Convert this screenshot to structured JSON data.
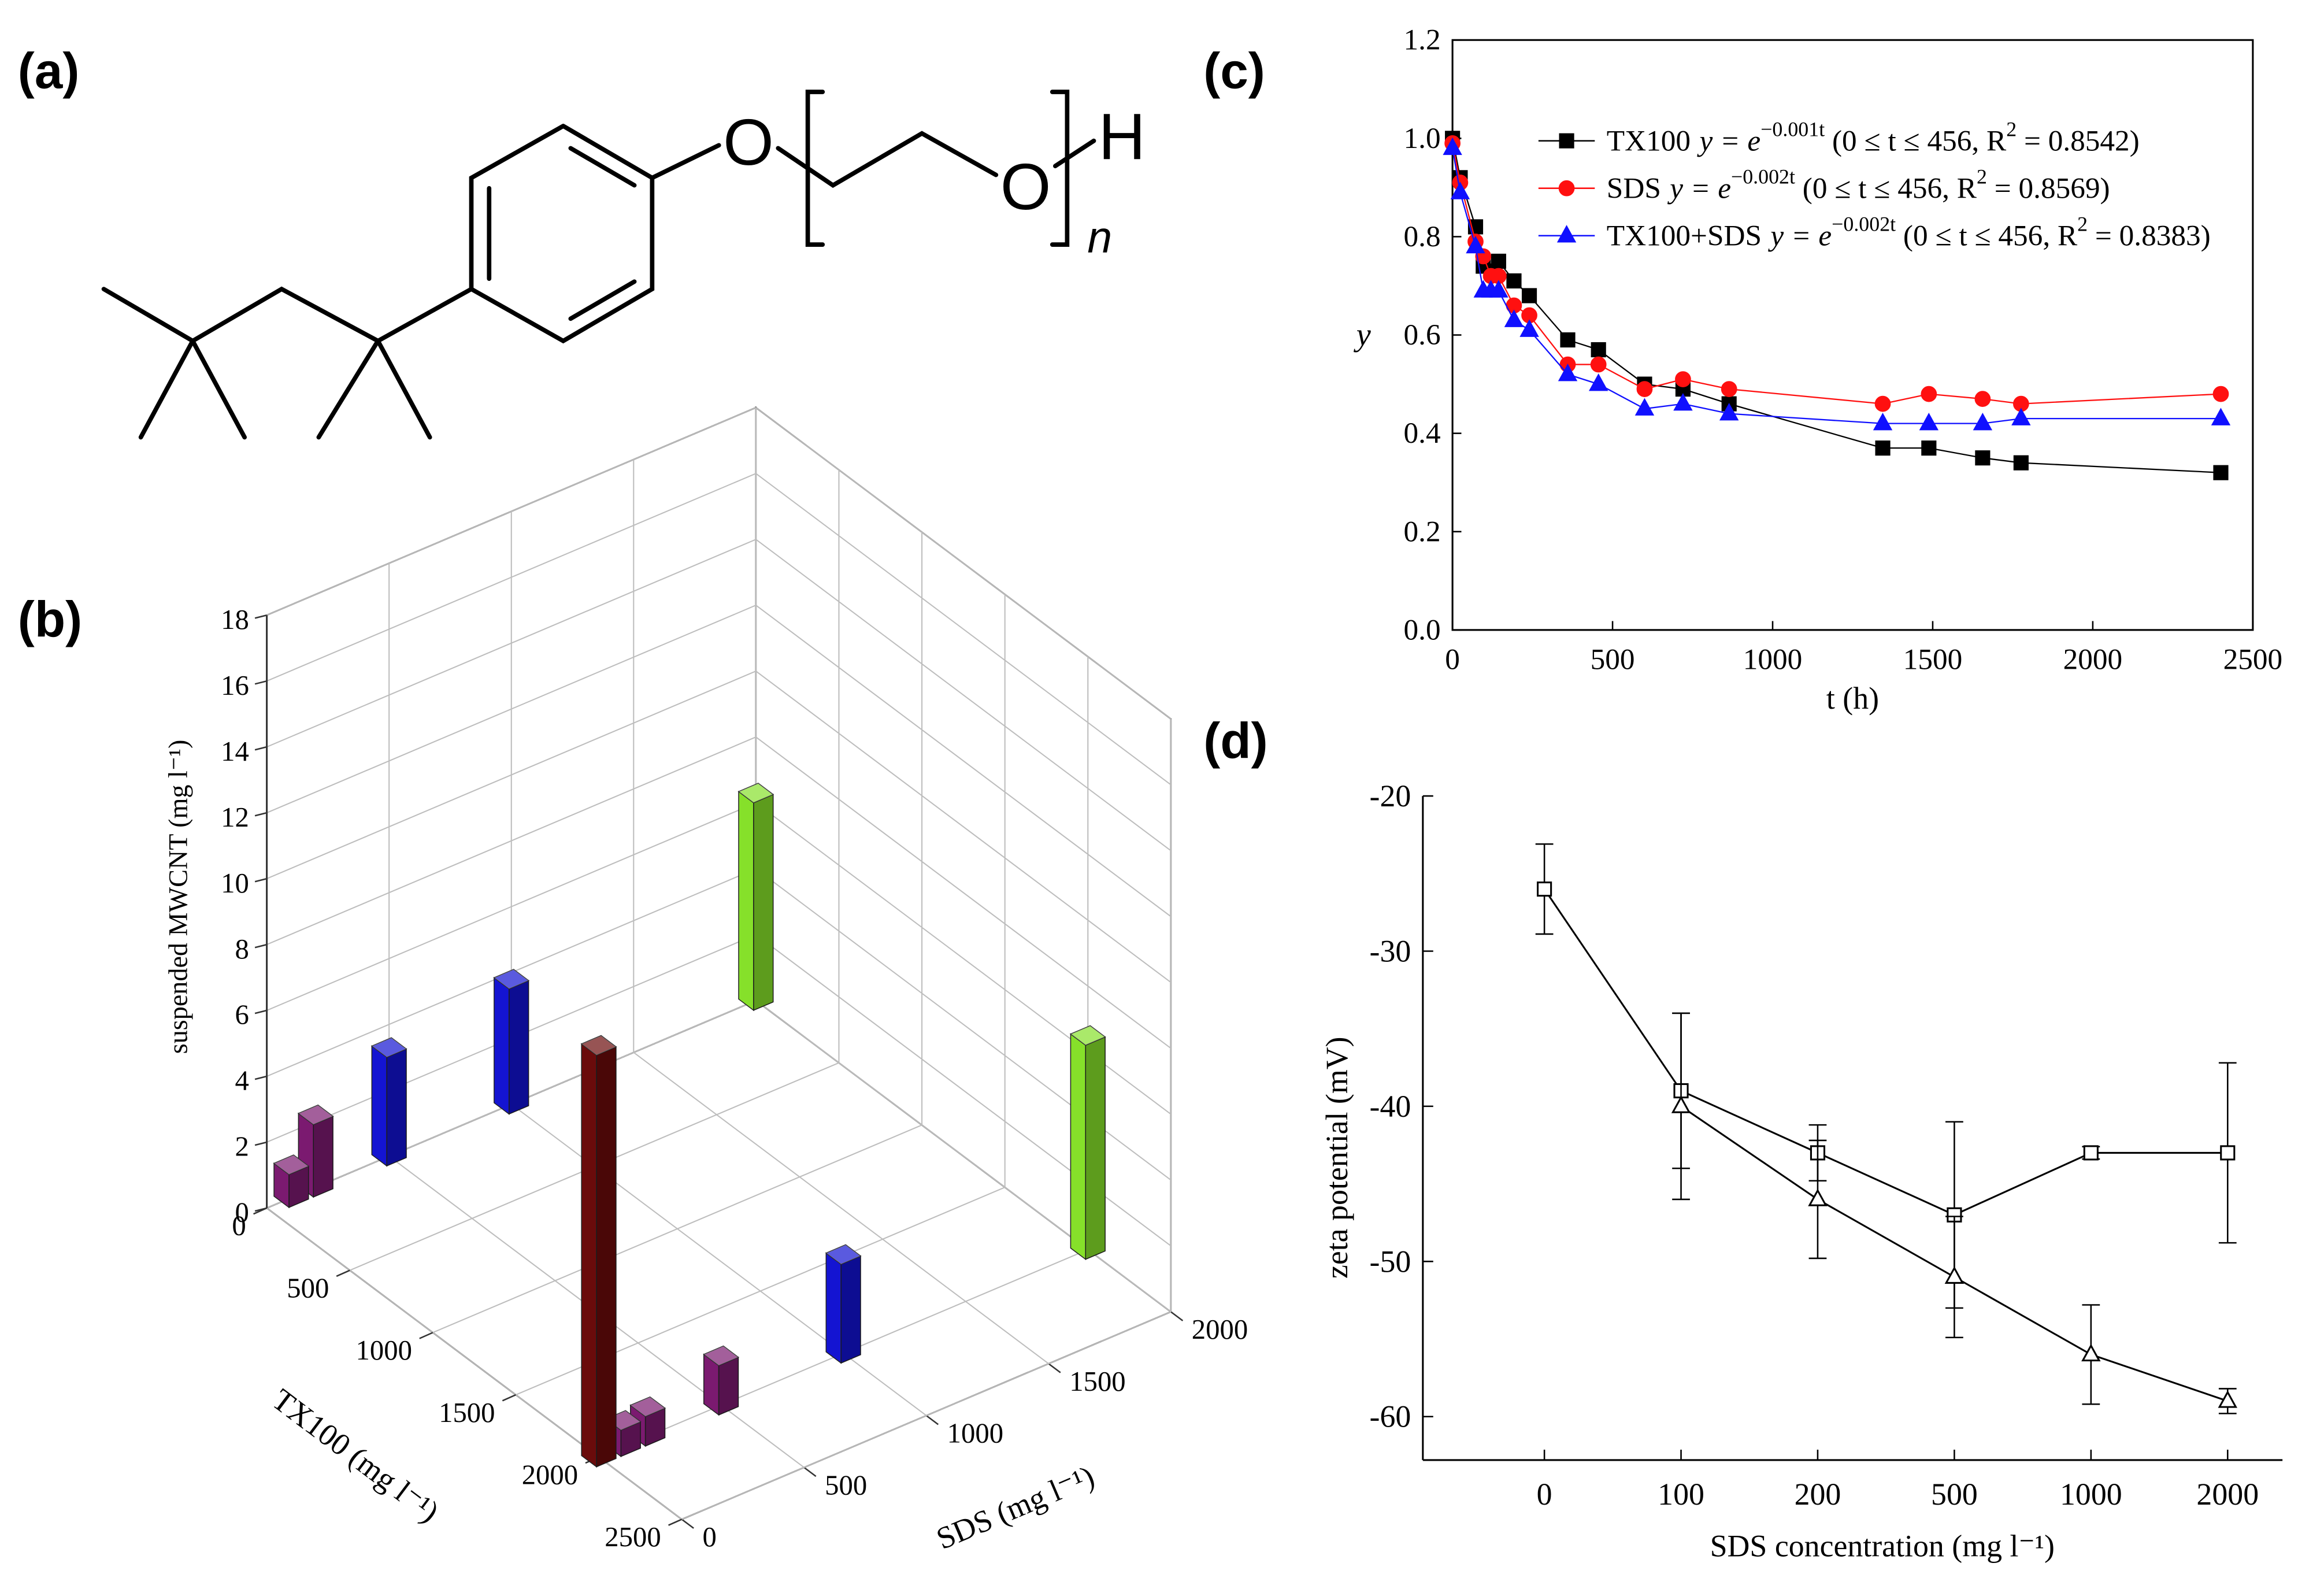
{
  "panel_labels": [
    "(a)",
    "(b)",
    "(c)",
    "(d)"
  ],
  "structure": {
    "oxygen_ether": "O",
    "oxygen_chain": "O",
    "hydrogen": "H",
    "repeat": "n"
  },
  "chart_data": [
    {
      "type": "bar3d",
      "xlabel": "TX100 (mg l⁻¹)",
      "ylabel": "SDS (mg l⁻¹)",
      "zlabel": "suspended MWCNT (mg l⁻¹)",
      "xlim": [
        0,
        2500
      ],
      "xticks": [
        0,
        500,
        1000,
        1500,
        2000,
        2500
      ],
      "ylim": [
        0,
        2000
      ],
      "yticks": [
        0,
        500,
        1000,
        1500,
        2000
      ],
      "zlim": [
        0,
        18
      ],
      "zticks": [
        0,
        2,
        4,
        6,
        8,
        10,
        12,
        14,
        16,
        18
      ],
      "grid": true,
      "x": [
        0,
        0,
        0,
        0,
        0,
        2000,
        2000,
        2000,
        2000,
        2000,
        2000
      ],
      "y": [
        100,
        200,
        500,
        1000,
        2000,
        0,
        100,
        200,
        500,
        1000,
        2000
      ],
      "values": [
        1.0,
        2.2,
        3.3,
        3.8,
        6.3,
        12.5,
        0.8,
        0.9,
        1.5,
        3.0,
        6.5
      ],
      "colors": [
        "#7b1a70",
        "#7b1a70",
        "#1414d2",
        "#1414d2",
        "#86e02a",
        "#6a0b0b",
        "#7b1a70",
        "#7b1a70",
        "#7b1a70",
        "#1414d2",
        "#86e02a"
      ]
    },
    {
      "type": "line",
      "xlabel": "t (h)",
      "ylabel": "y",
      "xlim": [
        0,
        2500
      ],
      "xticks": [
        0,
        500,
        1000,
        1500,
        2000,
        2500
      ],
      "ylim": [
        0,
        1.2
      ],
      "yticks": [
        {
          "value": 0,
          "label": "0.0"
        },
        0.2,
        0.4,
        0.6,
        0.8,
        {
          "value": 1,
          "label": "1.0"
        },
        1.2
      ],
      "x": [
        0,
        24,
        72,
        96,
        120,
        144,
        192,
        240,
        360,
        456,
        600,
        720,
        864,
        1344,
        1488,
        1656,
        1776,
        2400
      ],
      "series": [
        {
          "name": "TX100",
          "fit": [
            "y = e",
            "−0.001t",
            " (0 ≤ t ≤ 456, R",
            "2",
            " = 0.8542)"
          ],
          "color": "#000000",
          "marker": "square",
          "values": [
            1.0,
            0.92,
            0.82,
            0.74,
            0.73,
            0.75,
            0.71,
            0.68,
            0.59,
            0.57,
            0.5,
            0.49,
            0.46,
            0.37,
            0.37,
            0.35,
            0.34,
            0.32
          ]
        },
        {
          "name": "SDS",
          "fit": [
            "y = e",
            "−0.002t",
            " (0 ≤ t ≤ 456, R",
            "2",
            " = 0.8569)"
          ],
          "color": "#ff1010",
          "marker": "circle",
          "values": [
            0.99,
            0.91,
            0.79,
            0.76,
            0.72,
            0.72,
            0.66,
            0.64,
            0.54,
            0.54,
            0.49,
            0.51,
            0.49,
            0.46,
            0.48,
            0.47,
            0.46,
            0.48
          ]
        },
        {
          "name": "TX100+SDS",
          "fit": [
            "y = e",
            "−0.002t",
            " (0 ≤ t ≤ 456, R",
            "2",
            " = 0.8383)"
          ],
          "color": "#1010ff",
          "marker": "triangle",
          "values": [
            0.98,
            0.89,
            0.78,
            0.69,
            0.69,
            0.69,
            0.63,
            0.61,
            0.52,
            0.5,
            0.45,
            0.46,
            0.44,
            0.42,
            0.42,
            0.42,
            0.43,
            0.43
          ]
        }
      ]
    },
    {
      "type": "errorline",
      "xlabel": "SDS concentration (mg l⁻¹)",
      "ylabel": "zeta potential (mV)",
      "categories": [
        "0",
        "100",
        "200",
        "500",
        "1000",
        "2000"
      ],
      "ylim": [
        -62.8,
        -20
      ],
      "yticks": [
        -20,
        -30,
        -40,
        -50,
        -60
      ],
      "series": [
        {
          "color": "#000000",
          "marker": "square",
          "marker_fill": "#ffffff",
          "values": [
            -26,
            -39,
            -43,
            -47,
            -43,
            -43
          ],
          "errors": [
            2.9,
            5.0,
            1.8,
            6.0,
            0.4,
            5.8
          ]
        },
        {
          "color": "#000000",
          "marker": "triangle",
          "marker_fill": "#ffffff",
          "values": [
            null,
            -40,
            -46,
            -51,
            -56,
            -59
          ],
          "errors": [
            null,
            6.0,
            3.8,
            3.9,
            3.2,
            0.8
          ]
        }
      ]
    }
  ]
}
